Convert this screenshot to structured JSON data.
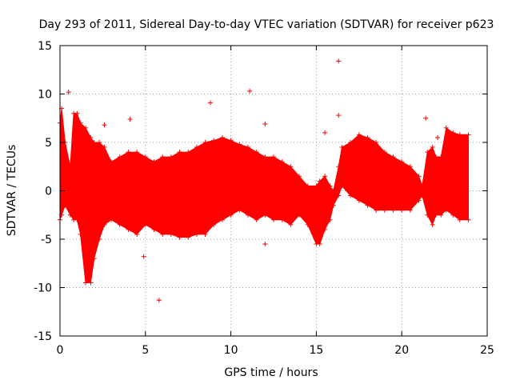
{
  "chart_data": {
    "type": "scatter",
    "title": "Day 293 of 2011, Sidereal Day-to-day VTEC variation (SDTVAR) for receiver p623",
    "xlabel": "GPS time / hours",
    "ylabel": "SDTVAR / TECUs",
    "xlim": [
      0,
      25
    ],
    "ylim": [
      -15,
      15
    ],
    "xticks": [
      0,
      5,
      10,
      15,
      20,
      25
    ],
    "yticks": [
      -15,
      -10,
      -5,
      0,
      5,
      10,
      15
    ],
    "grid": true,
    "series_color": "#ff0000",
    "envelope": {
      "description": "dense band of data points with error bars",
      "x": [
        0.0,
        0.1,
        0.3,
        0.6,
        0.8,
        1.0,
        1.2,
        1.5,
        1.8,
        2.0,
        2.3,
        2.6,
        3.0,
        3.5,
        4.0,
        4.5,
        5.0,
        5.5,
        6.0,
        6.5,
        7.0,
        7.5,
        8.0,
        8.5,
        9.0,
        9.5,
        10.0,
        10.5,
        11.0,
        11.5,
        12.0,
        12.5,
        13.0,
        13.5,
        14.0,
        14.5,
        15.0,
        15.2,
        15.5,
        15.8,
        16.0,
        16.3,
        16.5,
        17.0,
        17.5,
        18.0,
        18.5,
        19.0,
        19.5,
        20.0,
        20.5,
        21.0,
        21.2,
        21.5,
        21.8,
        22.0,
        22.3,
        22.6,
        23.0,
        23.4,
        23.9
      ],
      "upper": [
        7.0,
        8.5,
        5.0,
        2.5,
        8.0,
        8.0,
        7.0,
        6.5,
        5.5,
        5.0,
        5.0,
        4.5,
        3.0,
        3.5,
        4.0,
        4.0,
        3.5,
        3.0,
        3.5,
        3.5,
        4.0,
        4.0,
        4.5,
        5.0,
        5.2,
        5.5,
        5.2,
        4.8,
        4.5,
        4.0,
        3.5,
        3.5,
        3.0,
        2.5,
        1.5,
        0.5,
        0.5,
        1.0,
        1.5,
        0.5,
        0.0,
        2.5,
        4.5,
        5.0,
        5.8,
        5.5,
        5.0,
        4.0,
        3.5,
        3.0,
        2.5,
        1.5,
        0.5,
        4.0,
        4.5,
        3.5,
        3.5,
        6.5,
        6.0,
        5.8,
        5.8
      ],
      "lower": [
        -3.0,
        -2.5,
        -1.5,
        -2.5,
        -3.0,
        -3.0,
        -4.5,
        -9.5,
        -9.5,
        -7.0,
        -5.0,
        -3.5,
        -3.0,
        -3.5,
        -4.0,
        -4.5,
        -3.5,
        -4.0,
        -4.5,
        -4.5,
        -4.8,
        -4.8,
        -4.5,
        -4.5,
        -3.5,
        -3.0,
        -2.5,
        -2.0,
        -2.5,
        -3.0,
        -2.5,
        -3.0,
        -3.0,
        -3.5,
        -2.5,
        -3.5,
        -5.5,
        -5.5,
        -4.0,
        -3.0,
        -1.5,
        -0.5,
        0.5,
        -0.5,
        -1.0,
        -1.5,
        -2.0,
        -2.0,
        -2.0,
        -2.0,
        -2.0,
        -1.0,
        -0.5,
        -2.5,
        -3.5,
        -2.5,
        -2.5,
        -2.0,
        -2.5,
        -3.0,
        -3.0
      ]
    },
    "outliers": [
      {
        "x": 0.5,
        "y": 10.2
      },
      {
        "x": 2.6,
        "y": 6.8
      },
      {
        "x": 4.1,
        "y": 7.4
      },
      {
        "x": 4.9,
        "y": -6.8
      },
      {
        "x": 5.8,
        "y": -11.3
      },
      {
        "x": 8.8,
        "y": 9.1
      },
      {
        "x": 11.1,
        "y": 10.3
      },
      {
        "x": 12.0,
        "y": -5.5
      },
      {
        "x": 12.0,
        "y": 6.9
      },
      {
        "x": 15.5,
        "y": 6.0
      },
      {
        "x": 16.3,
        "y": 13.4
      },
      {
        "x": 16.3,
        "y": 7.8
      },
      {
        "x": 21.4,
        "y": 7.5
      },
      {
        "x": 22.1,
        "y": 5.5
      }
    ]
  }
}
